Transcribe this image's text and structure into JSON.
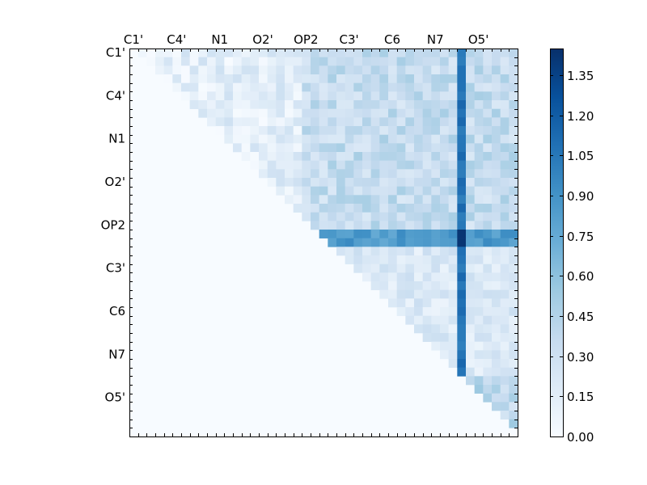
{
  "chart_data": {
    "type": "heatmap",
    "x_tick_labels": [
      "C1'",
      "C4'",
      "N1",
      "O2'",
      "OP2",
      "C3'",
      "C6",
      "N7",
      "O5'"
    ],
    "y_tick_labels": [
      "C1'",
      "C4'",
      "N1",
      "O2'",
      "OP2",
      "C3'",
      "C6",
      "N7",
      "O5'"
    ],
    "grid_size": 45,
    "colormap": "Blues",
    "colorbar": {
      "range": [
        0,
        1.45
      ],
      "tick_values": [
        0.0,
        0.15,
        0.3,
        0.45,
        0.6,
        0.75,
        0.9,
        1.05,
        1.2,
        1.35
      ],
      "tick_labels": [
        "0.00",
        "0.15",
        "0.30",
        "0.45",
        "0.60",
        "0.75",
        "0.90",
        "1.05",
        "1.20",
        "1.35"
      ]
    },
    "structure": "upper triangular (values only where column > row); highlighted row index 21-22 ≈ 0.75–1.0; highlighted column index 38 ≈ 1.0–1.4 (peak ≈ 1.42 at row 21-22); block columns 20–44 over rows 0–20 ≈ 0.2–0.5; block rows 38–44 over columns 38–44 ≈ 0.2–0.6; remaining upper cells ≈ 0.0–0.3; lower triangle 0.0"
  }
}
